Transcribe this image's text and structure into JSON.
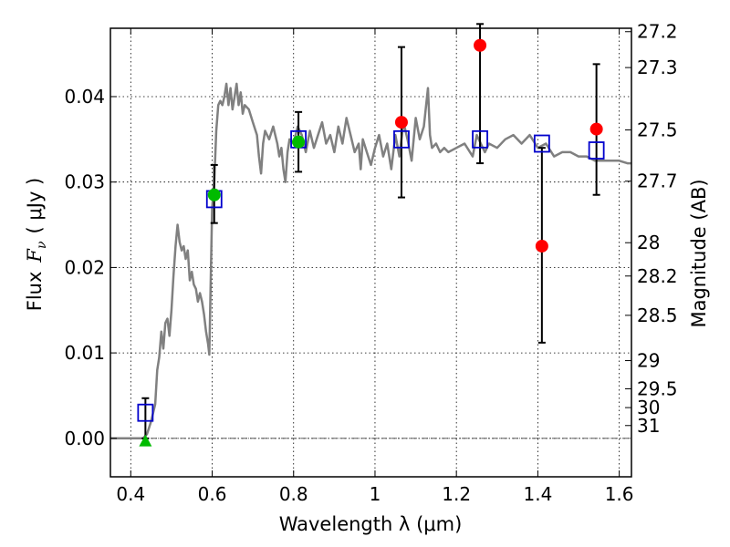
{
  "chart_data": {
    "type": "scatter",
    "xlabel": "Wavelength  λ (μm)",
    "ylabel_prefix": "Flux",
    "ylabel_symbol": "F",
    "ylabel_sub": "ν",
    "ylabel_unit": "( μJy )",
    "y2label": "Magnitude (AB)",
    "xlim": [
      0.35,
      1.63
    ],
    "ylim": [
      -0.0045,
      0.048
    ],
    "grid": true,
    "x_ticks": [
      0.4,
      0.6,
      0.8,
      1.0,
      1.2,
      1.4,
      1.6
    ],
    "x_tick_labels": [
      "0.4",
      "0.6",
      "0.8",
      "1",
      "1.2",
      "1.4",
      "1.6"
    ],
    "y_ticks": [
      0.0,
      0.01,
      0.02,
      0.03,
      0.04
    ],
    "y_tick_labels": [
      "0.00",
      "0.01",
      "0.02",
      "0.03",
      "0.04"
    ],
    "y2_ticks": [
      {
        "label": "27.2",
        "flux": 0.0476
      },
      {
        "label": "27.3",
        "flux": 0.0434
      },
      {
        "label": "27.5",
        "flux": 0.0361
      },
      {
        "label": "27.7",
        "flux": 0.0301
      },
      {
        "label": "28",
        "flux": 0.0229
      },
      {
        "label": "28.2",
        "flux": 0.019
      },
      {
        "label": "28.5",
        "flux": 0.0144
      },
      {
        "label": "29",
        "flux": 0.0091
      },
      {
        "label": "29.5",
        "flux": 0.0058
      },
      {
        "label": "30",
        "flux": 0.0036
      },
      {
        "label": "31",
        "flux": 0.0015
      }
    ],
    "series": [
      {
        "type": "line",
        "color": "#808080",
        "points": [
          [
            0.35,
            0.0
          ],
          [
            0.41,
            0.0
          ],
          [
            0.43,
            0.0
          ],
          [
            0.44,
            0.0005
          ],
          [
            0.45,
            0.002
          ],
          [
            0.46,
            0.004
          ],
          [
            0.465,
            0.008
          ],
          [
            0.47,
            0.0095
          ],
          [
            0.475,
            0.0125
          ],
          [
            0.48,
            0.0105
          ],
          [
            0.485,
            0.0135
          ],
          [
            0.49,
            0.014
          ],
          [
            0.495,
            0.012
          ],
          [
            0.5,
            0.015
          ],
          [
            0.505,
            0.019
          ],
          [
            0.51,
            0.0225
          ],
          [
            0.515,
            0.025
          ],
          [
            0.52,
            0.023
          ],
          [
            0.525,
            0.022
          ],
          [
            0.53,
            0.0225
          ],
          [
            0.535,
            0.021
          ],
          [
            0.54,
            0.022
          ],
          [
            0.545,
            0.0185
          ],
          [
            0.55,
            0.0195
          ],
          [
            0.555,
            0.018
          ],
          [
            0.56,
            0.0175
          ],
          [
            0.565,
            0.016
          ],
          [
            0.57,
            0.017
          ],
          [
            0.575,
            0.016
          ],
          [
            0.58,
            0.0145
          ],
          [
            0.585,
            0.0125
          ],
          [
            0.59,
            0.011
          ],
          [
            0.593,
            0.0098
          ],
          [
            0.597,
            0.02
          ],
          [
            0.6,
            0.027
          ],
          [
            0.605,
            0.03
          ],
          [
            0.61,
            0.036
          ],
          [
            0.615,
            0.039
          ],
          [
            0.62,
            0.0395
          ],
          [
            0.625,
            0.039
          ],
          [
            0.63,
            0.04
          ],
          [
            0.635,
            0.0415
          ],
          [
            0.64,
            0.039
          ],
          [
            0.645,
            0.041
          ],
          [
            0.65,
            0.0385
          ],
          [
            0.655,
            0.04
          ],
          [
            0.66,
            0.0415
          ],
          [
            0.665,
            0.039
          ],
          [
            0.67,
            0.0405
          ],
          [
            0.675,
            0.038
          ],
          [
            0.68,
            0.039
          ],
          [
            0.69,
            0.0385
          ],
          [
            0.7,
            0.037
          ],
          [
            0.71,
            0.0355
          ],
          [
            0.715,
            0.033
          ],
          [
            0.72,
            0.031
          ],
          [
            0.725,
            0.0345
          ],
          [
            0.73,
            0.036
          ],
          [
            0.74,
            0.035
          ],
          [
            0.75,
            0.0365
          ],
          [
            0.76,
            0.0345
          ],
          [
            0.765,
            0.033
          ],
          [
            0.77,
            0.034
          ],
          [
            0.775,
            0.0315
          ],
          [
            0.78,
            0.03
          ],
          [
            0.785,
            0.0335
          ],
          [
            0.79,
            0.035
          ],
          [
            0.8,
            0.0345
          ],
          [
            0.81,
            0.0365
          ],
          [
            0.82,
            0.0355
          ],
          [
            0.83,
            0.0335
          ],
          [
            0.84,
            0.036
          ],
          [
            0.85,
            0.034
          ],
          [
            0.86,
            0.0355
          ],
          [
            0.87,
            0.037
          ],
          [
            0.88,
            0.0345
          ],
          [
            0.89,
            0.0355
          ],
          [
            0.9,
            0.0335
          ],
          [
            0.91,
            0.0365
          ],
          [
            0.92,
            0.0345
          ],
          [
            0.93,
            0.0375
          ],
          [
            0.94,
            0.0355
          ],
          [
            0.95,
            0.0335
          ],
          [
            0.96,
            0.0345
          ],
          [
            0.965,
            0.0315
          ],
          [
            0.97,
            0.035
          ],
          [
            0.98,
            0.0335
          ],
          [
            0.99,
            0.032
          ],
          [
            1.0,
            0.034
          ],
          [
            1.01,
            0.0355
          ],
          [
            1.02,
            0.033
          ],
          [
            1.03,
            0.0345
          ],
          [
            1.04,
            0.0315
          ],
          [
            1.05,
            0.0355
          ],
          [
            1.06,
            0.033
          ],
          [
            1.07,
            0.037
          ],
          [
            1.08,
            0.035
          ],
          [
            1.09,
            0.0325
          ],
          [
            1.1,
            0.0375
          ],
          [
            1.11,
            0.035
          ],
          [
            1.12,
            0.0365
          ],
          [
            1.13,
            0.041
          ],
          [
            1.135,
            0.0355
          ],
          [
            1.14,
            0.034
          ],
          [
            1.15,
            0.0345
          ],
          [
            1.16,
            0.0335
          ],
          [
            1.17,
            0.034
          ],
          [
            1.18,
            0.0335
          ],
          [
            1.2,
            0.034
          ],
          [
            1.22,
            0.0345
          ],
          [
            1.24,
            0.033
          ],
          [
            1.25,
            0.0355
          ],
          [
            1.26,
            0.0345
          ],
          [
            1.27,
            0.0335
          ],
          [
            1.28,
            0.0345
          ],
          [
            1.3,
            0.034
          ],
          [
            1.32,
            0.035
          ],
          [
            1.34,
            0.0355
          ],
          [
            1.36,
            0.0345
          ],
          [
            1.38,
            0.0355
          ],
          [
            1.4,
            0.034
          ],
          [
            1.42,
            0.0345
          ],
          [
            1.44,
            0.033
          ],
          [
            1.46,
            0.0335
          ],
          [
            1.48,
            0.0335
          ],
          [
            1.5,
            0.033
          ],
          [
            1.52,
            0.033
          ],
          [
            1.54,
            0.0325
          ],
          [
            1.56,
            0.0325
          ],
          [
            1.58,
            0.0325
          ],
          [
            1.6,
            0.0325
          ],
          [
            1.62,
            0.0322
          ],
          [
            1.63,
            0.0322
          ]
        ]
      },
      {
        "type": "squares",
        "color": "#0000cc",
        "points": [
          [
            0.436,
            0.003
          ],
          [
            0.605,
            0.028
          ],
          [
            0.812,
            0.035
          ],
          [
            1.065,
            0.035
          ],
          [
            1.258,
            0.035
          ],
          [
            1.41,
            0.0345
          ],
          [
            1.544,
            0.0337
          ]
        ]
      },
      {
        "type": "circles",
        "color": "#ff0000",
        "points": [
          [
            1.065,
            0.037
          ],
          [
            1.258,
            0.046
          ],
          [
            1.41,
            0.0225
          ],
          [
            1.544,
            0.0362
          ]
        ]
      },
      {
        "type": "circles",
        "color": "#00bb00",
        "points": [
          [
            0.605,
            0.0285
          ],
          [
            0.812,
            0.0347
          ]
        ]
      },
      {
        "type": "triangles",
        "color": "#00bb00",
        "points": [
          [
            0.436,
            -0.0003
          ]
        ]
      },
      {
        "type": "errorbars",
        "color": "#000000",
        "points": [
          [
            0.436,
            0.0,
            0.0047
          ],
          [
            0.605,
            0.0252,
            0.032
          ],
          [
            0.812,
            0.0312,
            0.0382
          ],
          [
            1.065,
            0.0282,
            0.0458
          ],
          [
            1.258,
            0.0322,
            0.0485
          ],
          [
            1.41,
            0.0112,
            0.034
          ],
          [
            1.544,
            0.0285,
            0.0438
          ]
        ]
      }
    ]
  }
}
